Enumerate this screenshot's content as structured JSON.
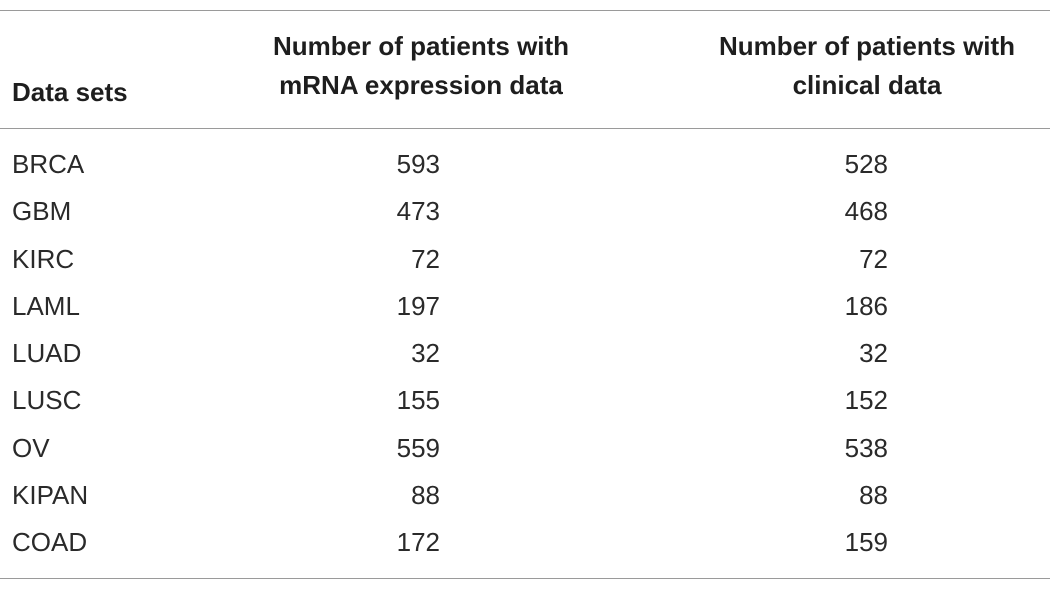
{
  "table": {
    "headers": {
      "col0": "Data sets",
      "col1_line1": "Number of patients with",
      "col1_line2": "mRNA expression data",
      "col2_line1": "Number of patients with",
      "col2_line2": "clinical data"
    },
    "rows": [
      {
        "dataset": "BRCA",
        "mrna": "593",
        "clinical": "528"
      },
      {
        "dataset": "GBM",
        "mrna": "473",
        "clinical": "468"
      },
      {
        "dataset": "KIRC",
        "mrna": "72",
        "clinical": "72"
      },
      {
        "dataset": "LAML",
        "mrna": "197",
        "clinical": "186"
      },
      {
        "dataset": "LUAD",
        "mrna": "32",
        "clinical": "32"
      },
      {
        "dataset": "LUSC",
        "mrna": "155",
        "clinical": "152"
      },
      {
        "dataset": "OV",
        "mrna": "559",
        "clinical": "538"
      },
      {
        "dataset": "KIPAN",
        "mrna": "88",
        "clinical": "88"
      },
      {
        "dataset": "COAD",
        "mrna": "172",
        "clinical": "159"
      }
    ]
  }
}
